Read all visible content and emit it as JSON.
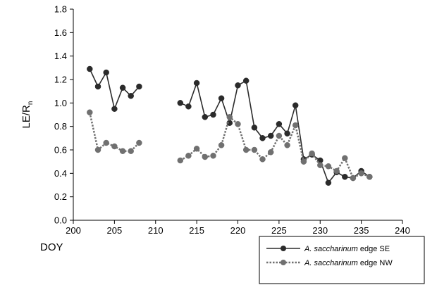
{
  "chart_data": {
    "type": "line",
    "xlabel": "DOY",
    "ylabel": {
      "main": "LE/R",
      "subscript": "n"
    },
    "xlim": [
      200,
      240
    ],
    "ylim": [
      0.0,
      1.8
    ],
    "x_ticks": [
      "200",
      "205",
      "210",
      "215",
      "220",
      "225",
      "230",
      "235",
      "240"
    ],
    "y_ticks": [
      "0.0",
      "0.2",
      "0.4",
      "0.6",
      "0.8",
      "1.0",
      "1.2",
      "1.4",
      "1.6",
      "1.8"
    ],
    "grid": false,
    "legend_position": "bottom-right outside",
    "series": [
      {
        "name": {
          "species": "A. saccharinum",
          "rest": " edge SE"
        },
        "color": "#2b2b2b",
        "line_style": "solid",
        "segments": [
          [
            [
              202,
              1.29
            ],
            [
              203,
              1.14
            ],
            [
              204,
              1.26
            ],
            [
              205,
              0.95
            ],
            [
              206,
              1.13
            ],
            [
              207,
              1.06
            ],
            [
              208,
              1.14
            ]
          ],
          [
            [
              213,
              1.0
            ],
            [
              214,
              0.97
            ],
            [
              215,
              1.17
            ],
            [
              216,
              0.88
            ],
            [
              217,
              0.9
            ],
            [
              218,
              1.04
            ],
            [
              219,
              0.83
            ],
            [
              220,
              1.15
            ],
            [
              221,
              1.19
            ],
            [
              222,
              0.79
            ],
            [
              223,
              0.7
            ],
            [
              224,
              0.72
            ],
            [
              225,
              0.82
            ],
            [
              226,
              0.74
            ],
            [
              227,
              0.98
            ],
            [
              228,
              0.52
            ],
            [
              229,
              0.56
            ],
            [
              230,
              0.51
            ],
            [
              231,
              0.32
            ],
            [
              232,
              0.41
            ],
            [
              233,
              0.37
            ],
            [
              234,
              0.36
            ],
            [
              235,
              0.42
            ],
            [
              236,
              0.37
            ]
          ]
        ]
      },
      {
        "name": {
          "species": "A. saccharinum",
          "rest": " edge NW"
        },
        "color": "#707070",
        "line_style": "dotted",
        "segments": [
          [
            [
              202,
              0.92
            ],
            [
              203,
              0.6
            ],
            [
              204,
              0.66
            ],
            [
              205,
              0.63
            ],
            [
              206,
              0.59
            ],
            [
              207,
              0.59
            ],
            [
              208,
              0.66
            ]
          ],
          [
            [
              213,
              0.51
            ],
            [
              214,
              0.55
            ],
            [
              215,
              0.61
            ],
            [
              216,
              0.54
            ],
            [
              217,
              0.55
            ],
            [
              218,
              0.64
            ],
            [
              219,
              0.88
            ],
            [
              220,
              0.82
            ],
            [
              221,
              0.6
            ],
            [
              222,
              0.6
            ],
            [
              223,
              0.52
            ],
            [
              224,
              0.58
            ],
            [
              225,
              0.72
            ],
            [
              226,
              0.64
            ],
            [
              227,
              0.81
            ],
            [
              228,
              0.5
            ],
            [
              229,
              0.57
            ],
            [
              230,
              0.47
            ],
            [
              231,
              0.46
            ],
            [
              232,
              0.42
            ],
            [
              233,
              0.53
            ],
            [
              234,
              0.36
            ],
            [
              235,
              0.4
            ],
            [
              236,
              0.37
            ]
          ]
        ]
      }
    ]
  }
}
